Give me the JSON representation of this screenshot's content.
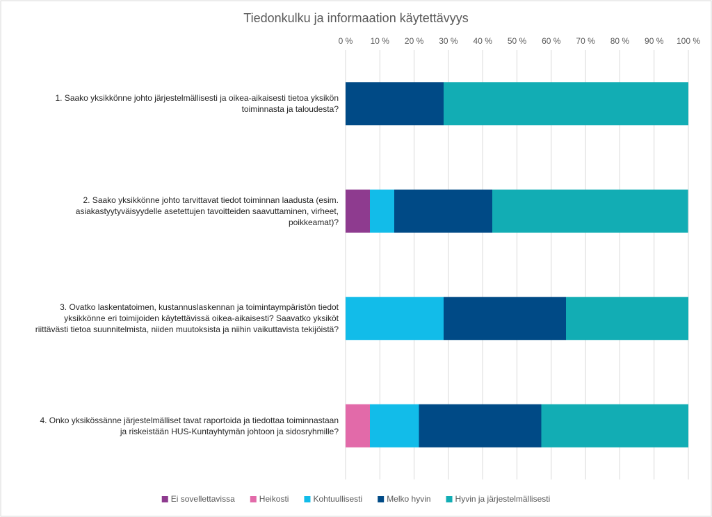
{
  "chart_data": {
    "type": "stacked-bar-horizontal",
    "title": "Tiedonkulku ja informaation käytettävyys",
    "categories": [
      "1. Saako yksikkönne johto järjestelmällisesti ja oikea-aikaisesti tietoa yksikön toiminnasta ja taloudesta?",
      "2. Saako yksikkönne johto tarvittavat tiedot toiminnan laadusta (esim. asiakastyytyväisyydelle asetettujen tavoitteiden saavuttaminen, virheet, poikkeamat)?",
      "3. Ovatko laskentatoimen, kustannuslaskennan ja toimintaympäristön tiedot yksikkönne eri toimijoiden käytettävissä oikea-aikaisesti? Saavatko yksiköt riittävästi tietoa suunnitelmista, niiden muutoksista ja niihin vaikuttavista tekijöistä?",
      "4. Onko yksikössänne järjestelmälliset tavat raportoida ja tiedottaa toiminnastaan ja riskeistään HUS-Kuntayhtymän johtoon ja sidosryhmille?"
    ],
    "series": [
      {
        "name": "Ei sovellettavissa",
        "color": "#8e3b8f",
        "values": [
          0,
          7.1,
          0,
          0
        ]
      },
      {
        "name": "Heikosti",
        "color": "#e26aa9",
        "values": [
          0,
          0,
          0,
          7.1
        ]
      },
      {
        "name": "Kohtuullisesti",
        "color": "#12bce9",
        "values": [
          0,
          7.1,
          28.6,
          14.3
        ]
      },
      {
        "name": "Melko hyvin",
        "color": "#004a86",
        "values": [
          28.6,
          28.6,
          35.7,
          35.7
        ]
      },
      {
        "name": "Hyvin ja järjestelmällisesti",
        "color": "#12adb4",
        "values": [
          71.4,
          57.1,
          35.7,
          42.9
        ]
      }
    ],
    "xlim": [
      0,
      100
    ],
    "xticks": [
      {
        "value": 0,
        "label": "0 %"
      },
      {
        "value": 10,
        "label": "10 %"
      },
      {
        "value": 20,
        "label": "20 %"
      },
      {
        "value": 30,
        "label": "30 %"
      },
      {
        "value": 40,
        "label": "40 %"
      },
      {
        "value": 50,
        "label": "50 %"
      },
      {
        "value": 60,
        "label": "60 %"
      },
      {
        "value": 70,
        "label": "70 %"
      },
      {
        "value": 80,
        "label": "80 %"
      },
      {
        "value": 90,
        "label": "90 %"
      },
      {
        "value": 100,
        "label": "100 %"
      }
    ],
    "grid": true,
    "legend": "bottom"
  }
}
